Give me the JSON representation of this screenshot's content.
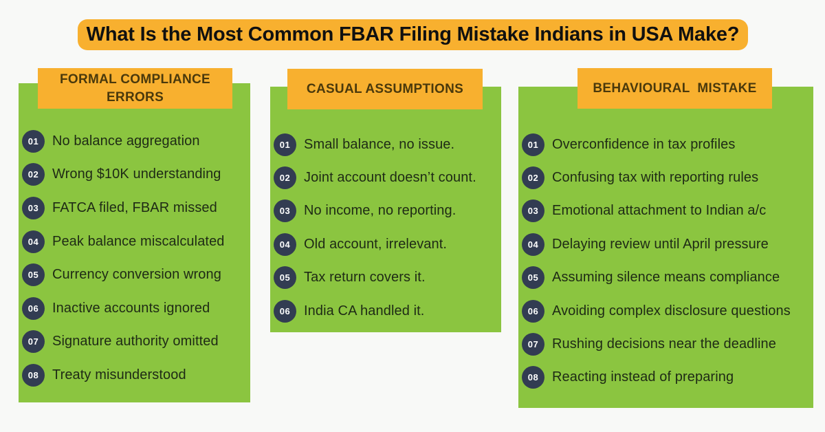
{
  "title": {
    "text": "What Is the Most Common FBAR Filing Mistake Indians in USA Make?"
  },
  "colors": {
    "background": "#F8F9F7",
    "banner_orange": "#F8B02F",
    "panel_green": "#8BC540",
    "badge_navy": "#323C52",
    "header_text": "#4A390C",
    "item_text": "#1E2A15",
    "title_text": "#101010",
    "badge_text": "#FFFFFF"
  },
  "columns": [
    {
      "header": "FORMAL COMPLIANCE ERRORS",
      "items": [
        {
          "num": "01",
          "text": "No balance aggregation"
        },
        {
          "num": "02",
          "text": "Wrong $10K understanding"
        },
        {
          "num": "03",
          "text": "FATCA filed, FBAR missed"
        },
        {
          "num": "04",
          "text": "Peak balance miscalculated"
        },
        {
          "num": "05",
          "text": "Currency conversion wrong"
        },
        {
          "num": "06",
          "text": "Inactive accounts ignored"
        },
        {
          "num": "07",
          "text": "Signature authority omitted"
        },
        {
          "num": "08",
          "text": "Treaty misunderstood"
        }
      ]
    },
    {
      "header": "CASUAL ASSUMPTIONS",
      "items": [
        {
          "num": "01",
          "text": "Small balance, no issue."
        },
        {
          "num": "02",
          "text": "Joint account doesn’t count."
        },
        {
          "num": "03",
          "text": "No income, no reporting."
        },
        {
          "num": "04",
          "text": "Old account, irrelevant."
        },
        {
          "num": "05",
          "text": "Tax return covers it."
        },
        {
          "num": "06",
          "text": "India CA handled it."
        }
      ]
    },
    {
      "header": "BEHAVIOURAL  MISTAKE",
      "items": [
        {
          "num": "01",
          "text": "Overconfidence in tax profiles"
        },
        {
          "num": "02",
          "text": "Confusing tax with reporting rules"
        },
        {
          "num": "03",
          "text": "Emotional attachment to Indian a/c"
        },
        {
          "num": "04",
          "text": "Delaying review until April pressure"
        },
        {
          "num": "05",
          "text": "Assuming silence means compliance"
        },
        {
          "num": "06",
          "text": "Avoiding complex disclosure questions"
        },
        {
          "num": "07",
          "text": "Rushing decisions near the deadline"
        },
        {
          "num": "08",
          "text": "Reacting instead of preparing"
        }
      ]
    }
  ]
}
